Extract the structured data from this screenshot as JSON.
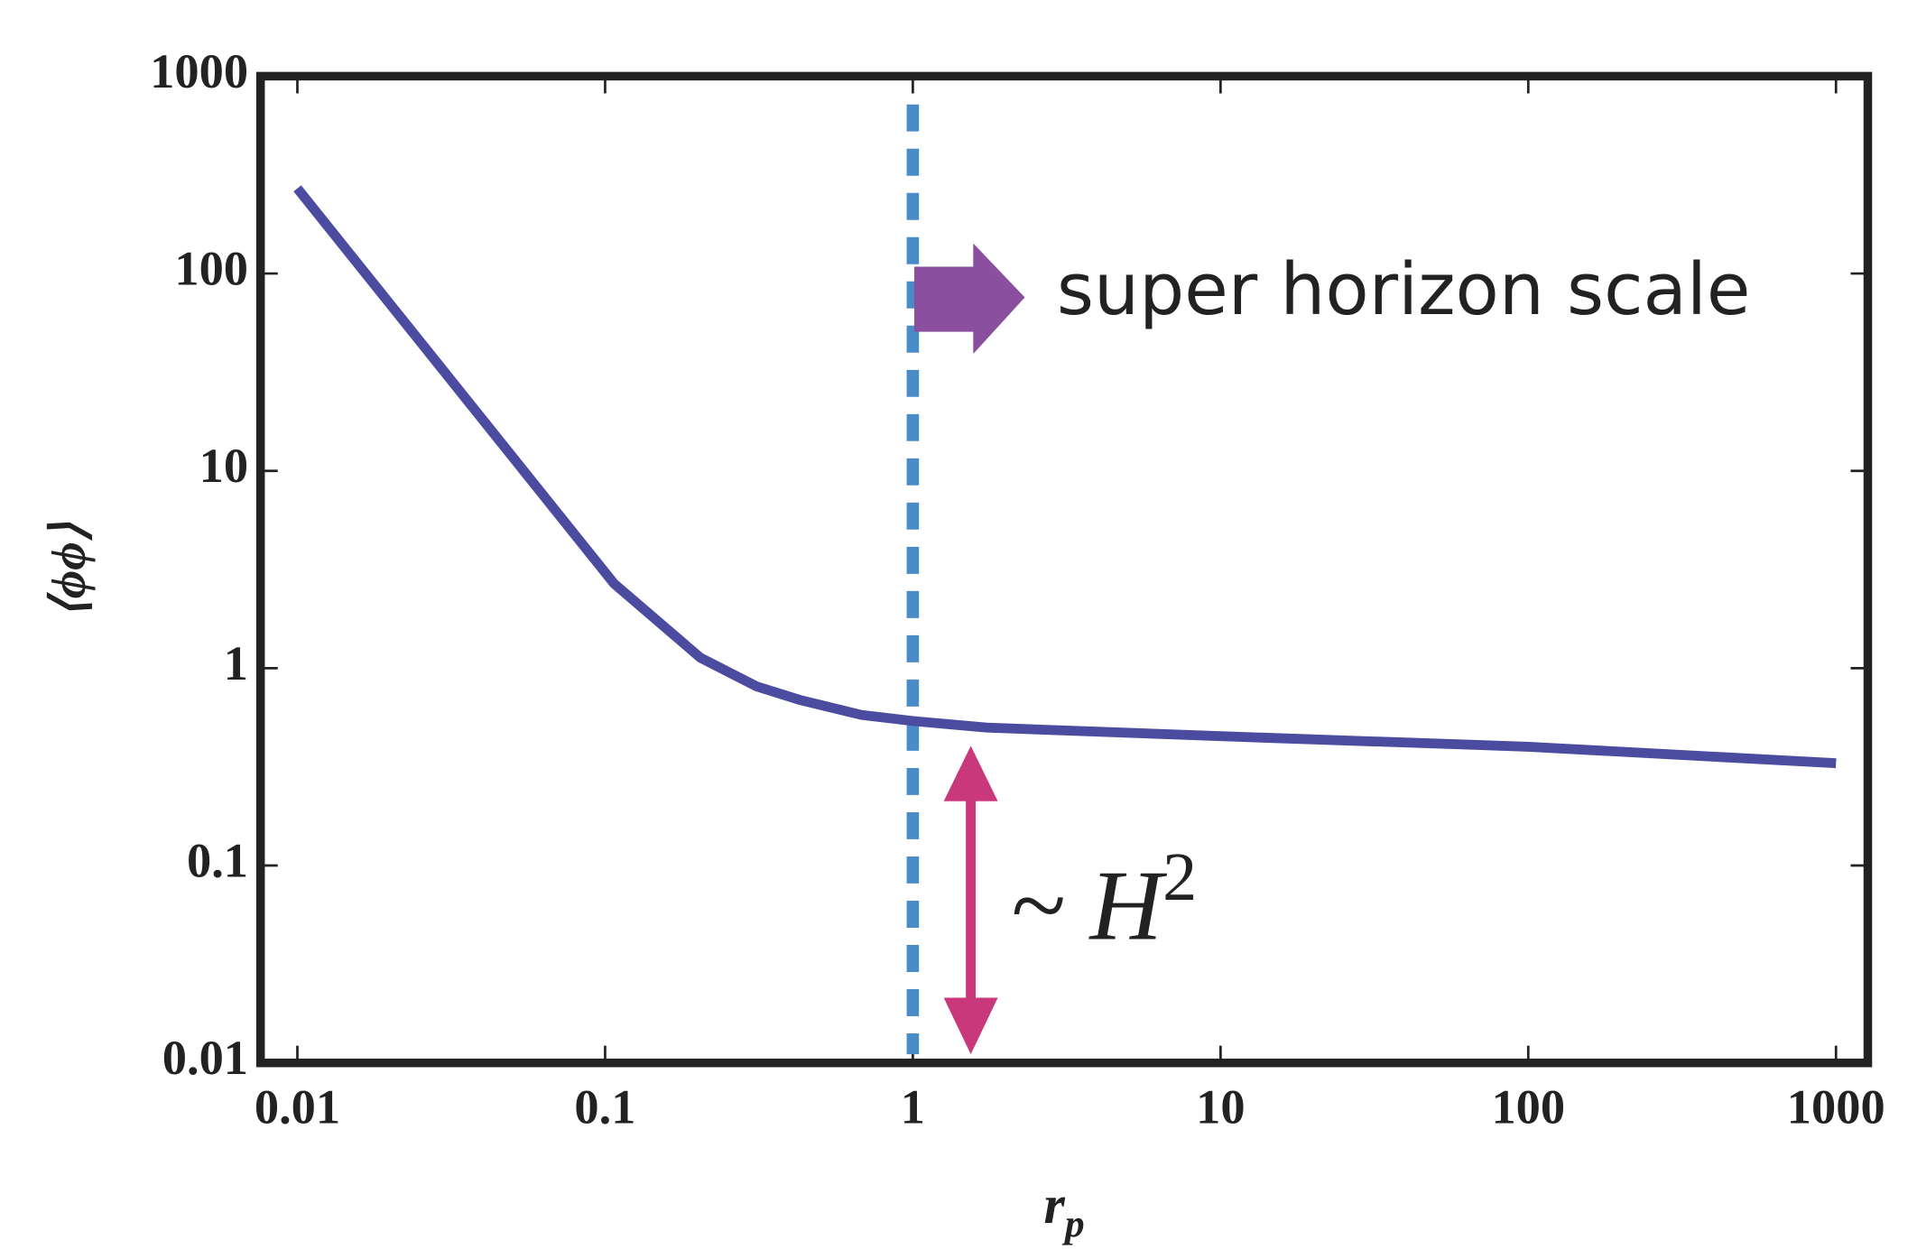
{
  "chart_data": {
    "type": "line",
    "x_scale": "log",
    "y_scale": "log",
    "x_label": "r",
    "x_label_sub": "p",
    "y_label": "⟨ϕϕ⟩",
    "x": [
      0.01,
      0.107,
      0.204,
      0.31,
      0.43,
      0.68,
      1,
      1.74,
      11,
      100,
      1000
    ],
    "series": [
      {
        "color": "#4b4ba0",
        "values": [
          270,
          2.68,
          1.13,
          0.81,
          0.69,
          0.58,
          0.54,
          0.5,
          0.45,
          0.4,
          0.33
        ]
      }
    ],
    "xlim": [
      0.00759,
      1269
    ],
    "ylim": [
      0.01,
      1000
    ],
    "xticks": [
      0.01,
      0.1,
      1,
      10,
      100,
      1000
    ],
    "yticks": [
      0.01,
      0.1,
      1,
      10,
      100,
      1000
    ],
    "vline": {
      "x": 1,
      "color": "#4a8cc8"
    },
    "annotations": [
      {
        "text": "super horizon scale",
        "x": 2.3,
        "y": 60,
        "color": "#8a4f9e"
      },
      {
        "text": "~ H",
        "sup": "2",
        "x": 1.6,
        "y": 0.5,
        "color": "#c8387a"
      }
    ]
  }
}
